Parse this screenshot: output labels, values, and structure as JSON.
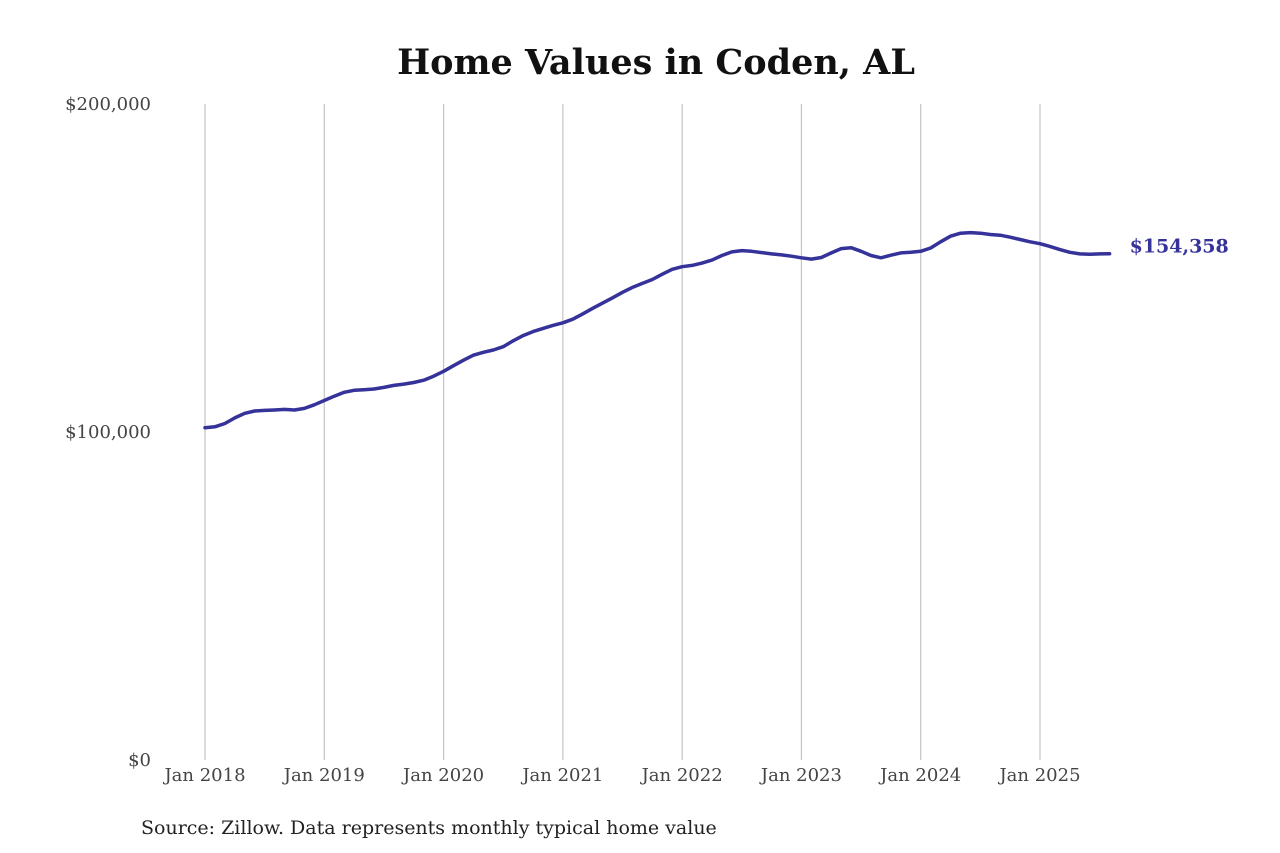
{
  "chart_data": {
    "type": "line",
    "title": "Home Values in Coden, AL",
    "xlabel": "",
    "ylabel": "",
    "ylim": [
      0,
      200000
    ],
    "y_ticks": [
      {
        "value": 0,
        "label": "$0"
      },
      {
        "value": 100000,
        "label": "$100,000"
      },
      {
        "value": 200000,
        "label": "$200,000"
      }
    ],
    "x_ticks": [
      {
        "value": "2018-01",
        "label": "Jan 2018"
      },
      {
        "value": "2019-01",
        "label": "Jan 2019"
      },
      {
        "value": "2020-01",
        "label": "Jan 2020"
      },
      {
        "value": "2021-01",
        "label": "Jan 2021"
      },
      {
        "value": "2022-01",
        "label": "Jan 2022"
      },
      {
        "value": "2023-01",
        "label": "Jan 2023"
      },
      {
        "value": "2024-01",
        "label": "Jan 2024"
      },
      {
        "value": "2025-01",
        "label": "Jan 2025"
      }
    ],
    "grid": "vertical",
    "legend": "none",
    "line_color": "#35329a",
    "end_label": "$154,358",
    "series": [
      {
        "x": [
          "2018-01",
          "2018-02",
          "2018-03",
          "2018-04",
          "2018-05",
          "2018-06",
          "2018-07",
          "2018-08",
          "2018-09",
          "2018-10",
          "2018-11",
          "2018-12",
          "2019-01",
          "2019-02",
          "2019-03",
          "2019-04",
          "2019-05",
          "2019-06",
          "2019-07",
          "2019-08",
          "2019-09",
          "2019-10",
          "2019-11",
          "2019-12",
          "2020-01",
          "2020-02",
          "2020-03",
          "2020-04",
          "2020-05",
          "2020-06",
          "2020-07",
          "2020-08",
          "2020-09",
          "2020-10",
          "2020-11",
          "2020-12",
          "2021-01",
          "2021-02",
          "2021-03",
          "2021-04",
          "2021-05",
          "2021-06",
          "2021-07",
          "2021-08",
          "2021-09",
          "2021-10",
          "2021-11",
          "2021-12",
          "2022-01",
          "2022-02",
          "2022-03",
          "2022-04",
          "2022-05",
          "2022-06",
          "2022-07",
          "2022-08",
          "2022-09",
          "2022-10",
          "2022-11",
          "2022-12",
          "2023-01",
          "2023-02",
          "2023-03",
          "2023-04",
          "2023-05",
          "2023-06",
          "2023-07",
          "2023-08",
          "2023-09",
          "2023-10",
          "2023-11",
          "2023-12",
          "2024-01",
          "2024-02",
          "2024-03",
          "2024-04",
          "2024-05",
          "2024-06",
          "2024-07",
          "2024-08",
          "2024-09",
          "2024-10",
          "2024-11",
          "2024-12",
          "2025-01",
          "2025-02",
          "2025-03",
          "2025-04",
          "2025-05",
          "2025-06",
          "2025-07",
          "2025-08"
        ],
        "values": [
          101300,
          101600,
          102600,
          104300,
          105700,
          106400,
          106600,
          106700,
          106900,
          106700,
          107200,
          108300,
          109600,
          110900,
          112100,
          112700,
          112900,
          113100,
          113600,
          114200,
          114600,
          115100,
          115800,
          117000,
          118500,
          120200,
          121900,
          123400,
          124300,
          125000,
          126000,
          127800,
          129400,
          130600,
          131600,
          132500,
          133300,
          134400,
          136000,
          137700,
          139300,
          140900,
          142600,
          144100,
          145300,
          146500,
          148100,
          149600,
          150400,
          150800,
          151500,
          152400,
          153800,
          154900,
          155300,
          155100,
          154700,
          154300,
          154000,
          153600,
          153100,
          152700,
          153200,
          154600,
          155900,
          156200,
          155100,
          153800,
          153100,
          153900,
          154600,
          154800,
          155100,
          156100,
          158000,
          159700,
          160600,
          160800,
          160600,
          160200,
          160000,
          159400,
          158700,
          158000,
          157400,
          156600,
          155600,
          154800,
          154300,
          154200,
          154300,
          154358
        ]
      }
    ]
  },
  "source_note": "Source: Zillow. Data represents monthly typical home value"
}
